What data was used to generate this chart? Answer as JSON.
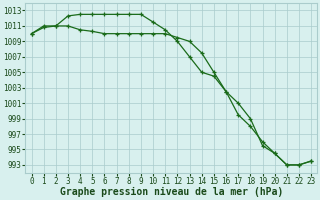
{
  "title": "Graphe pression niveau de la mer (hPa)",
  "line1_x": [
    0,
    1,
    2,
    3,
    4,
    5,
    6,
    7,
    8,
    9,
    10,
    11,
    12,
    13,
    14,
    15,
    16,
    17,
    18,
    19,
    20,
    21,
    22,
    23
  ],
  "line1_y": [
    1010.0,
    1010.8,
    1011.0,
    1011.0,
    1010.5,
    1010.3,
    1010.0,
    1010.0,
    1010.0,
    1010.0,
    1010.0,
    1010.0,
    1009.5,
    1009.0,
    1007.5,
    1005.0,
    1002.5,
    1001.0,
    999.0,
    995.5,
    994.5,
    993.0,
    993.0,
    993.5
  ],
  "line2_x": [
    0,
    1,
    2,
    3,
    4,
    5,
    6,
    7,
    8,
    9,
    10,
    11,
    12,
    13,
    14,
    15,
    16,
    17,
    18,
    19,
    20,
    21,
    22,
    23
  ],
  "line2_y": [
    1010.0,
    1011.0,
    1011.0,
    1012.3,
    1012.5,
    1012.5,
    1012.5,
    1012.5,
    1012.5,
    1012.5,
    1011.5,
    1010.5,
    1009.0,
    1007.0,
    1005.0,
    1004.5,
    1002.5,
    999.5,
    998.0,
    996.0,
    994.5,
    993.0,
    993.0,
    993.5
  ],
  "ylim_min": 992.0,
  "ylim_max": 1014.0,
  "yticks": [
    993,
    995,
    997,
    999,
    1001,
    1003,
    1005,
    1007,
    1009,
    1011,
    1013
  ],
  "line_color": "#1a6b1a",
  "bg_color": "#d8f0ee",
  "grid_color": "#aacccc",
  "title_color": "#1a4a1a",
  "title_fontsize": 7.0,
  "tick_fontsize": 5.5,
  "marker_size": 3.5,
  "line_width": 0.9
}
